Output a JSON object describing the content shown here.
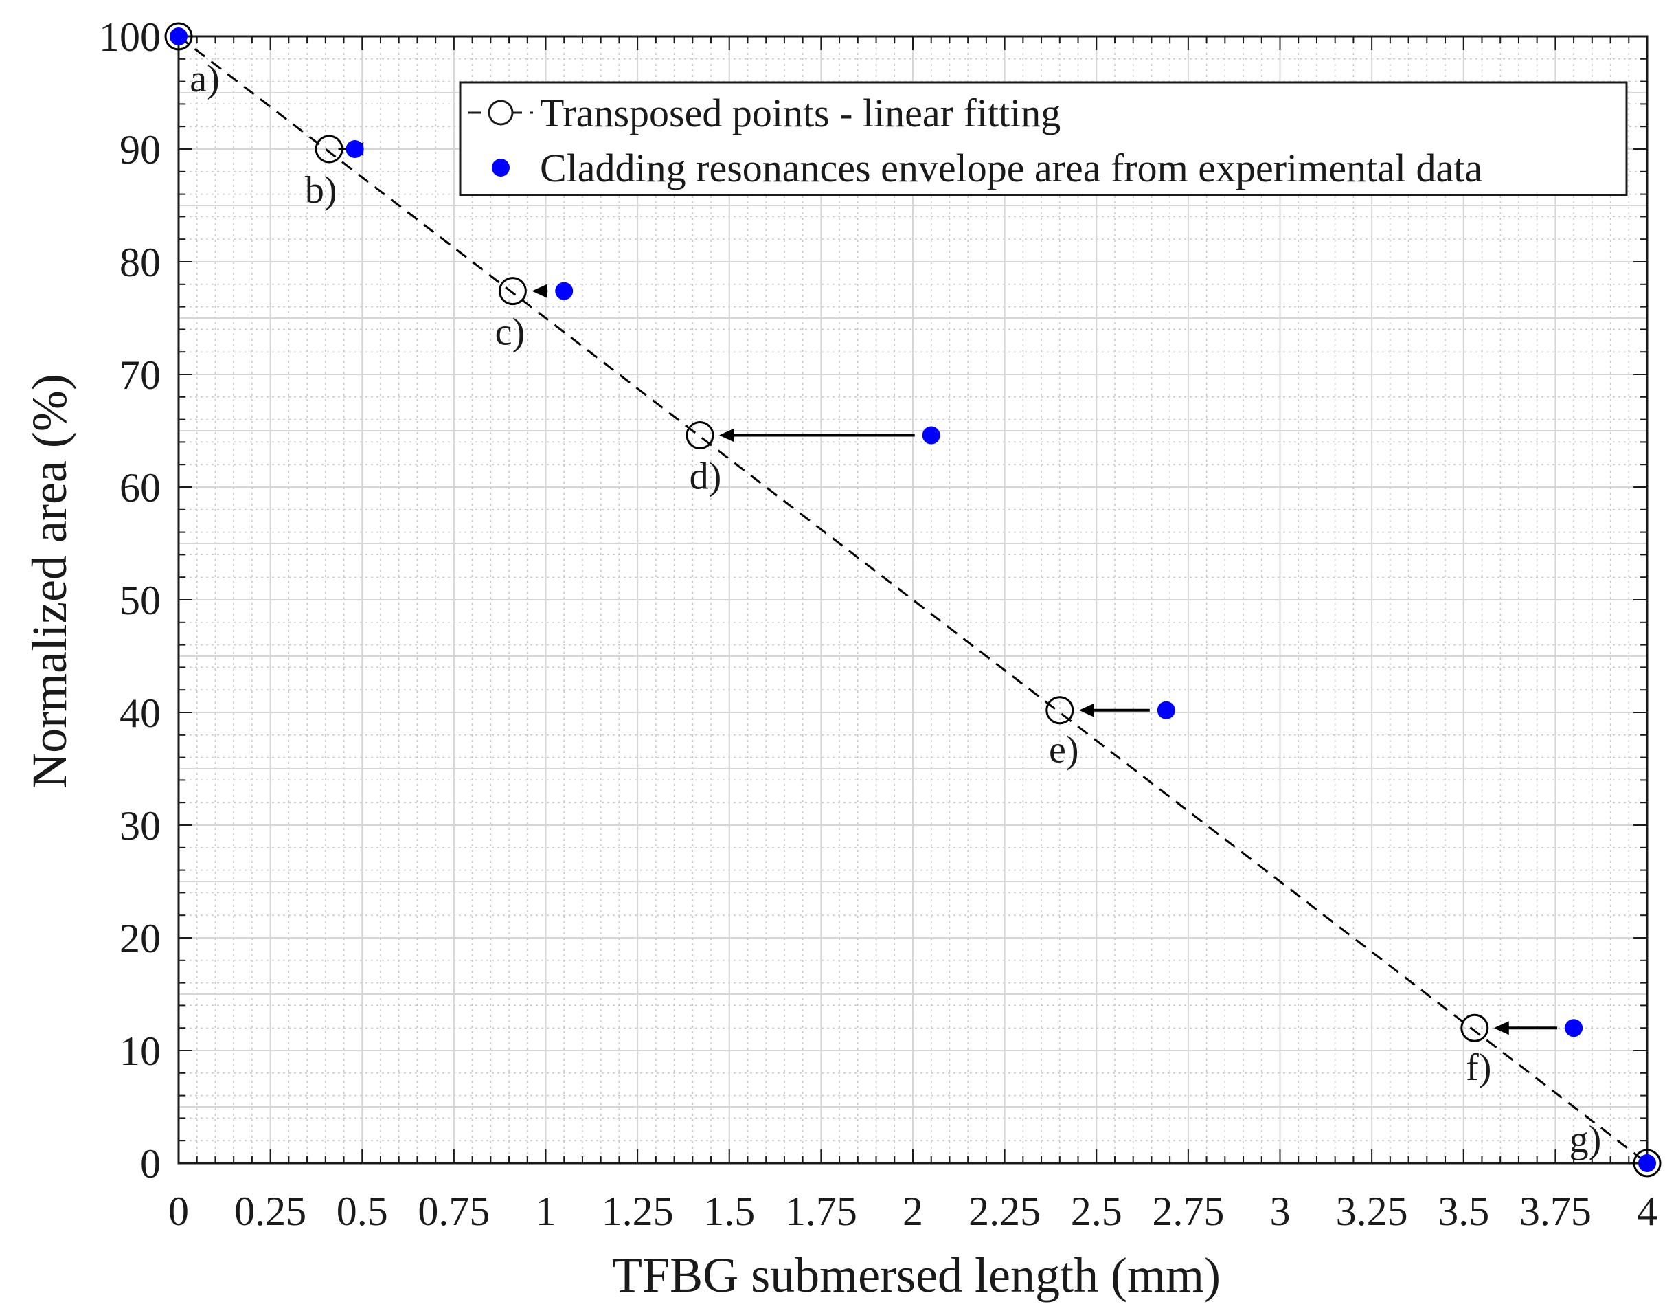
{
  "chart_data": {
    "type": "scatter",
    "xlabel": "TFBG submersed length (mm)",
    "ylabel": "Normalized area (%)",
    "xlim": [
      0,
      4
    ],
    "ylim": [
      0,
      100
    ],
    "x_ticks": [
      "0",
      "0.25",
      "0.5",
      "0.75",
      "1",
      "1.25",
      "1.5",
      "1.75",
      "2",
      "2.25",
      "2.5",
      "2.75",
      "3",
      "3.25",
      "3.5",
      "3.75",
      "4"
    ],
    "x_tick_values": [
      0,
      0.25,
      0.5,
      0.75,
      1,
      1.25,
      1.5,
      1.75,
      2,
      2.25,
      2.5,
      2.75,
      3,
      3.25,
      3.5,
      3.75,
      4
    ],
    "y_ticks": [
      "0",
      "10",
      "20",
      "30",
      "40",
      "50",
      "60",
      "70",
      "80",
      "90",
      "100"
    ],
    "y_tick_values": [
      0,
      10,
      20,
      30,
      40,
      50,
      60,
      70,
      80,
      90,
      100
    ],
    "grid": true,
    "minor_grid": true,
    "legend_position": "top-right",
    "series": [
      {
        "name": "Transposed points - linear fitting",
        "style": "open-circle-dashed-line",
        "color": "#000000",
        "x": [
          0,
          0.41,
          0.91,
          1.42,
          2.4,
          3.53,
          4.0
        ],
        "y": [
          100,
          90,
          77.4,
          64.6,
          40.2,
          12.0,
          0
        ]
      },
      {
        "name": "Cladding resonances envelope area from experimental data",
        "style": "filled-dot",
        "color": "#0000ff",
        "x": [
          0,
          0.48,
          1.05,
          2.05,
          2.69,
          3.8,
          4.0
        ],
        "y": [
          100,
          90,
          77.4,
          64.6,
          40.2,
          12.0,
          0
        ]
      }
    ],
    "annotations": [
      "a)",
      "b)",
      "c)",
      "d)",
      "e)",
      "f)",
      "g)"
    ]
  }
}
